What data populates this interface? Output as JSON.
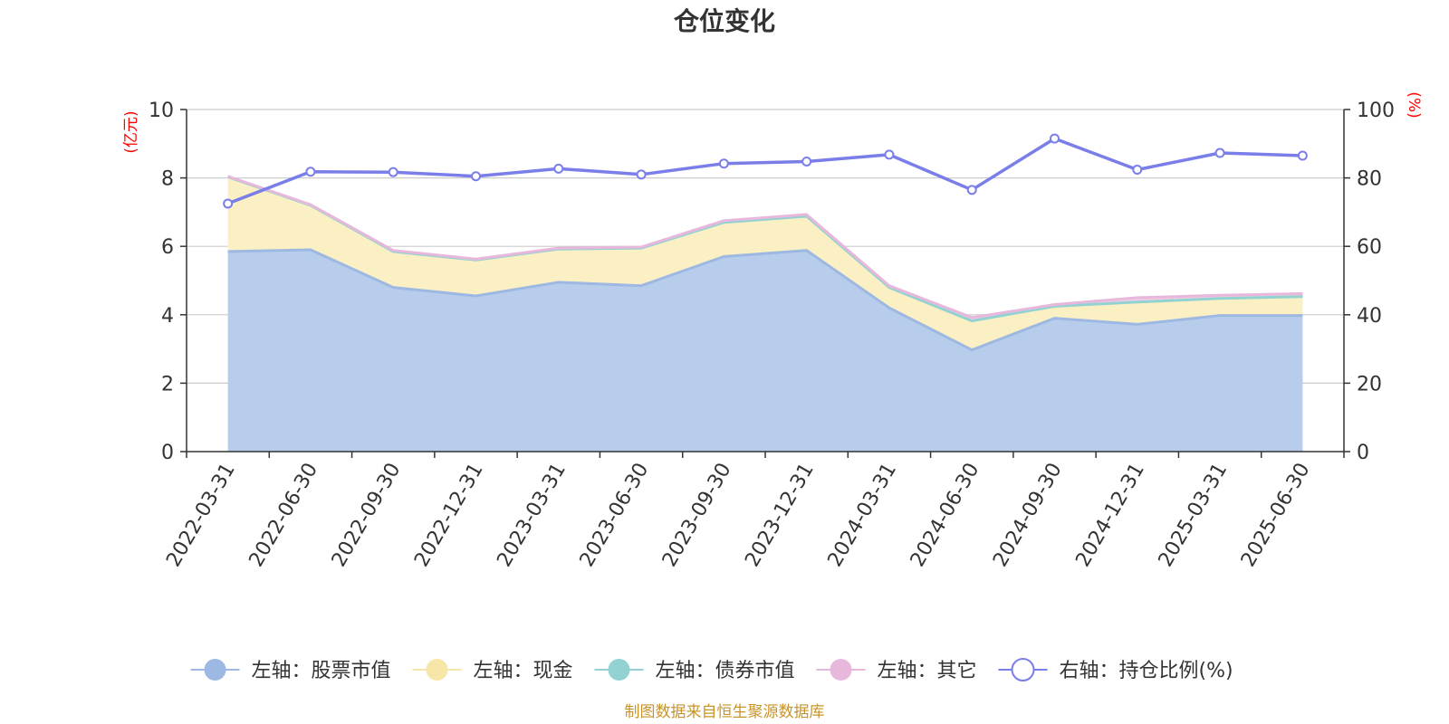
{
  "chart_data": {
    "type": "area",
    "title": "仓位变化",
    "left_unit": "(亿元)",
    "right_unit": "(%)",
    "source": "制图数据来自恒生聚源数据库",
    "x": [
      "2022-03-31",
      "2022-06-30",
      "2022-09-30",
      "2022-12-31",
      "2023-03-31",
      "2023-06-30",
      "2023-09-30",
      "2023-12-31",
      "2024-03-31",
      "2024-06-30",
      "2024-09-30",
      "2024-12-31",
      "2025-03-31",
      "2025-06-30"
    ],
    "y_left": {
      "min": 0,
      "max": 10,
      "ticks": [
        "0",
        "2",
        "4",
        "6",
        "8",
        "10"
      ]
    },
    "y_right": {
      "min": 0,
      "max": 100,
      "ticks": [
        "0",
        "20",
        "40",
        "60",
        "80",
        "100"
      ]
    },
    "grid": true,
    "legend_position": "bottom",
    "series": [
      {
        "name": "左轴：股票市值",
        "axis": "left",
        "stack": true,
        "color": "#9db8e2",
        "fill": "#b8cdeb",
        "values": [
          5.85,
          5.9,
          4.8,
          4.55,
          4.95,
          4.85,
          5.7,
          5.88,
          4.2,
          2.97,
          3.9,
          3.72,
          3.98,
          3.98
        ]
      },
      {
        "name": "左轴：现金",
        "axis": "left",
        "stack": true,
        "color": "#f8e6a8",
        "fill": "#fbf0c4",
        "values": [
          2.18,
          1.3,
          1.05,
          1.05,
          0.97,
          1.1,
          1.0,
          1.0,
          0.6,
          0.85,
          0.35,
          0.65,
          0.5,
          0.55
        ]
      },
      {
        "name": "左轴：债券市值",
        "axis": "left",
        "stack": true,
        "color": "#93d2d3",
        "fill": "#a9dcdc",
        "values": [
          0,
          0,
          0,
          0,
          0,
          0,
          0,
          0,
          0,
          0,
          0,
          0,
          0,
          0
        ]
      },
      {
        "name": "左轴：其它",
        "axis": "left",
        "stack": true,
        "color": "#e8b8dc",
        "fill": "#f0cce6",
        "values": [
          0.02,
          0.02,
          0.03,
          0.03,
          0.03,
          0.03,
          0.05,
          0.05,
          0.05,
          0.1,
          0.05,
          0.13,
          0.09,
          0.09
        ]
      },
      {
        "name": "右轴：持仓比例(%)",
        "axis": "right",
        "type": "line",
        "color": "#7a7ee8",
        "values": [
          72.5,
          81.8,
          81.7,
          80.5,
          82.7,
          81,
          84.2,
          84.8,
          86.8,
          76.5,
          91.5,
          82.4,
          87.3,
          86.5
        ]
      }
    ]
  }
}
